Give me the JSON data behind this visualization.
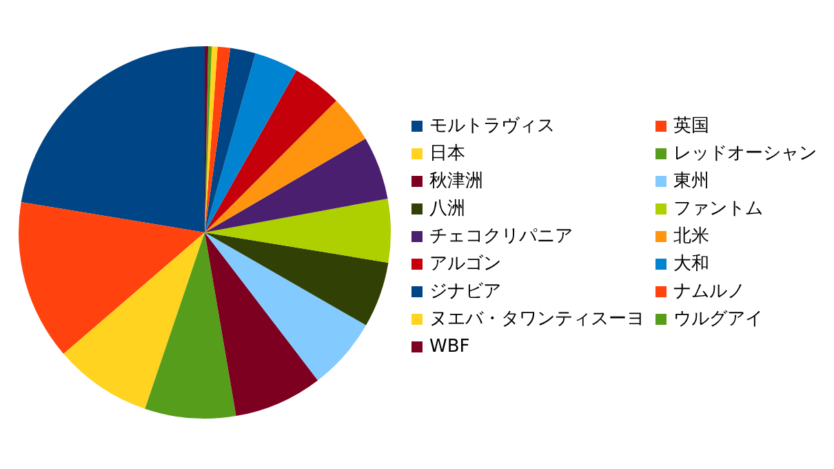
{
  "chart_data": {
    "type": "pie",
    "legend": "right",
    "categories": [
      "モルトラヴィス",
      "英国",
      "日本",
      "レッドオーシャン",
      "秋津洲",
      "東州",
      "八洲",
      "ファントム",
      "チェコクリパニア",
      "北米",
      "アルゴン",
      "大和",
      "ジナビア",
      "ナムルノ",
      "ヌエバ・タワンティスーヨ",
      "ウルグアイ",
      "WBF"
    ],
    "values": [
      22.4,
      13.9,
      8.5,
      7.9,
      7.7,
      6.3,
      5.7,
      5.5,
      5.5,
      4.1,
      4.3,
      3.8,
      2.2,
      1.1,
      0.5,
      0.3,
      0.3
    ],
    "colors": [
      "#004586",
      "#ff420e",
      "#ffd320",
      "#579d1c",
      "#7e0021",
      "#83caff",
      "#314004",
      "#aecf00",
      "#4b1f6f",
      "#ff950e",
      "#c5000b",
      "#0084d1",
      "#004586",
      "#ff420e",
      "#ffd320",
      "#579d1c",
      "#7e0021"
    ]
  }
}
